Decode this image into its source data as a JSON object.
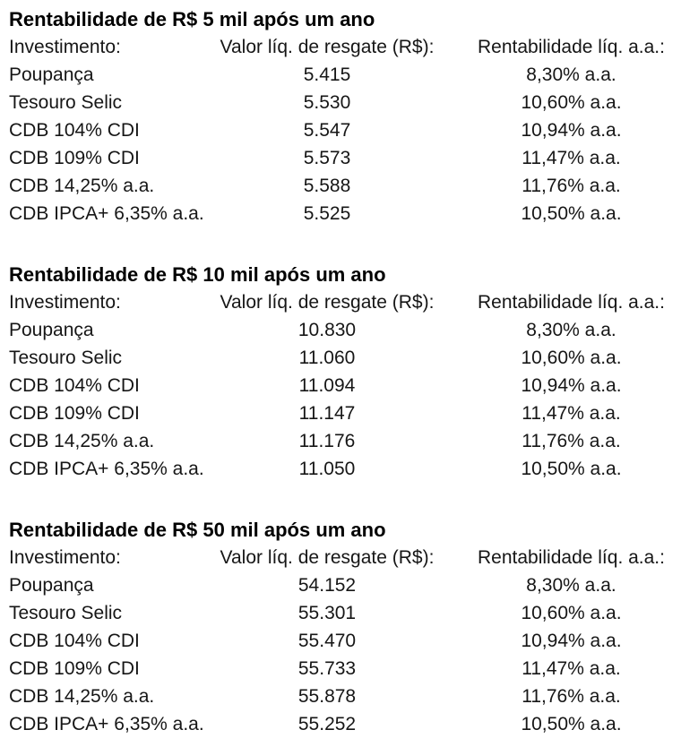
{
  "page": {
    "columns": [
      "Investimento:",
      "Valor líq. de resgate (R$):",
      "Rentabilidade líq. a.a.:"
    ],
    "sections": [
      {
        "title": "Rentabilidade de R$ 5 mil após um ano",
        "rows": [
          {
            "investment": "Poupança",
            "value": "5.415",
            "yield": "8,30% a.a."
          },
          {
            "investment": "Tesouro Selic",
            "value": "5.530",
            "yield": "10,60% a.a."
          },
          {
            "investment": "CDB 104% CDI",
            "value": "5.547",
            "yield": "10,94% a.a."
          },
          {
            "investment": "CDB 109% CDI",
            "value": "5.573",
            "yield": "11,47% a.a."
          },
          {
            "investment": "CDB 14,25% a.a.",
            "value": "5.588",
            "yield": "11,76% a.a."
          },
          {
            "investment": "CDB IPCA+ 6,35% a.a.",
            "value": "5.525",
            "yield": "10,50% a.a."
          }
        ]
      },
      {
        "title": "Rentabilidade de R$ 10 mil após um ano",
        "rows": [
          {
            "investment": "Poupança",
            "value": "10.830",
            "yield": "8,30% a.a."
          },
          {
            "investment": "Tesouro Selic",
            "value": "11.060",
            "yield": "10,60% a.a."
          },
          {
            "investment": "CDB 104% CDI",
            "value": "11.094",
            "yield": "10,94% a.a."
          },
          {
            "investment": "CDB 109% CDI",
            "value": "11.147",
            "yield": "11,47% a.a."
          },
          {
            "investment": "CDB 14,25% a.a.",
            "value": "11.176",
            "yield": "11,76% a.a."
          },
          {
            "investment": "CDB IPCA+ 6,35% a.a.",
            "value": "11.050",
            "yield": "10,50% a.a."
          }
        ]
      },
      {
        "title": "Rentabilidade de R$ 50 mil após um ano",
        "rows": [
          {
            "investment": "Poupança",
            "value": "54.152",
            "yield": "8,30% a.a."
          },
          {
            "investment": "Tesouro Selic",
            "value": "55.301",
            "yield": "10,60% a.a."
          },
          {
            "investment": "CDB 104% CDI",
            "value": "55.470",
            "yield": "10,94% a.a."
          },
          {
            "investment": "CDB 109% CDI",
            "value": "55.733",
            "yield": "11,47% a.a."
          },
          {
            "investment": "CDB 14,25% a.a.",
            "value": "55.878",
            "yield": "11,76% a.a."
          },
          {
            "investment": "CDB IPCA+ 6,35% a.a.",
            "value": "55.252",
            "yield": "10,50% a.a."
          }
        ]
      }
    ]
  }
}
